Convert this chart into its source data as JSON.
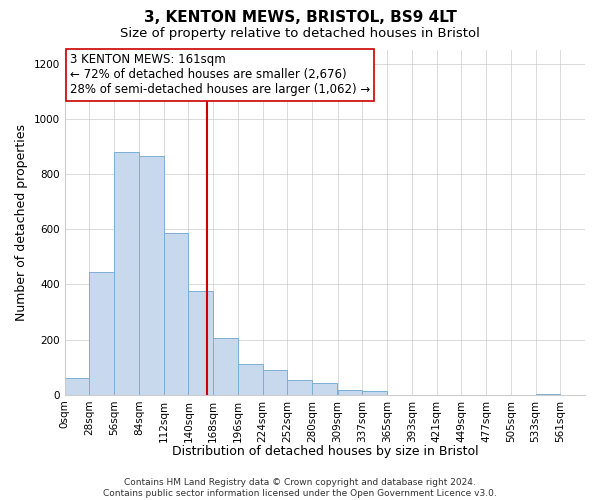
{
  "title": "3, KENTON MEWS, BRISTOL, BS9 4LT",
  "subtitle": "Size of property relative to detached houses in Bristol",
  "xlabel": "Distribution of detached houses by size in Bristol",
  "ylabel": "Number of detached properties",
  "bar_color": "#c8d9ee",
  "bar_edge_color": "#7bafd4",
  "bar_left_edges": [
    0,
    28,
    56,
    84,
    112,
    140,
    168,
    196,
    224,
    252,
    280,
    309,
    337,
    365,
    393,
    421,
    449,
    477,
    505,
    533
  ],
  "bar_heights": [
    62,
    445,
    880,
    865,
    585,
    375,
    205,
    113,
    88,
    55,
    44,
    18,
    12,
    0,
    0,
    0,
    0,
    0,
    0,
    4
  ],
  "bin_width": 28,
  "x_tick_labels": [
    "0sqm",
    "28sqm",
    "56sqm",
    "84sqm",
    "112sqm",
    "140sqm",
    "168sqm",
    "196sqm",
    "224sqm",
    "252sqm",
    "280sqm",
    "309sqm",
    "337sqm",
    "365sqm",
    "393sqm",
    "421sqm",
    "449sqm",
    "477sqm",
    "505sqm",
    "533sqm",
    "561sqm"
  ],
  "x_tick_positions": [
    0,
    28,
    56,
    84,
    112,
    140,
    168,
    196,
    224,
    252,
    280,
    309,
    337,
    365,
    393,
    421,
    449,
    477,
    505,
    533,
    561
  ],
  "ylim": [
    0,
    1250
  ],
  "yticks": [
    0,
    200,
    400,
    600,
    800,
    1000,
    1200
  ],
  "xlim_max": 589,
  "property_size": 161,
  "property_line_color": "#cc0000",
  "annotation_line1": "3 KENTON MEWS: 161sqm",
  "annotation_line2": "← 72% of detached houses are smaller (2,676)",
  "annotation_line3": "28% of semi-detached houses are larger (1,062) →",
  "annotation_box_color": "#ffffff",
  "annotation_box_edge": "#cc0000",
  "footer_text": "Contains HM Land Registry data © Crown copyright and database right 2024.\nContains public sector information licensed under the Open Government Licence v3.0.",
  "grid_color": "#cccccc",
  "background_color": "#ffffff",
  "title_fontsize": 11,
  "subtitle_fontsize": 9.5,
  "axis_label_fontsize": 9,
  "tick_fontsize": 7.5,
  "annotation_fontsize": 8.5,
  "footer_fontsize": 6.5
}
